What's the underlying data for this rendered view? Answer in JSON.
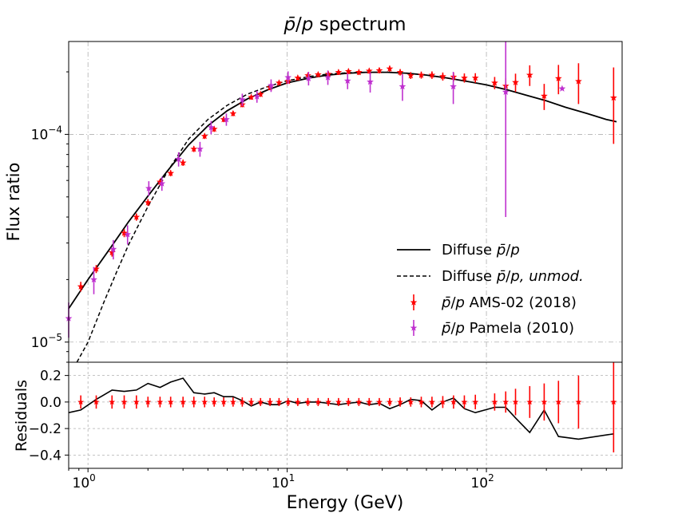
{
  "chart_data": [
    {
      "type": "scatter",
      "title": "p̄/p spectrum",
      "xlabel": "",
      "ylabel": "Flux ratio",
      "x_scale": "log",
      "y_scale": "log",
      "xlim": [
        0.8,
        480
      ],
      "ylim": [
        8e-06,
        0.00028
      ],
      "x_tick_labels": [
        "10^0",
        "10^1",
        "10^2"
      ],
      "y_tick_labels": [
        "10^-5",
        "10^-4"
      ],
      "grid": true,
      "legend_position": "lower-right",
      "series": [
        {
          "name": "Diffuse p̄/p",
          "style": "solid-line",
          "color": "#000000",
          "x": [
            0.8,
            1.0,
            1.3,
            1.6,
            2.0,
            2.5,
            3.2,
            4.0,
            5.0,
            6.3,
            8.0,
            10,
            13,
            16,
            20,
            25,
            32,
            40,
            50,
            63,
            80,
            100,
            130,
            160,
            200,
            250,
            320,
            400,
            450
          ],
          "y": [
            1.45e-05,
            2e-05,
            2.85e-05,
            3.8e-05,
            5.05e-05,
            6.65e-05,
            8.9e-05,
            0.00011,
            0.00013,
            0.000148,
            0.000164,
            0.000177,
            0.000187,
            0.000193,
            0.000197,
            0.000199,
            0.000199,
            0.000197,
            0.000193,
            0.000187,
            0.00018,
            0.000173,
            0.000163,
            0.000154,
            0.000145,
            0.000135,
            0.000126,
            0.000118,
            0.000115
          ]
        },
        {
          "name": "Diffuse p̄/p, unmod.",
          "style": "dashed-line",
          "color": "#000000",
          "x": [
            0.88,
            1.0,
            1.2,
            1.4,
            1.6,
            2.0,
            2.5,
            3.2,
            4.0,
            5.0,
            6.3,
            8.0,
            10,
            13,
            16,
            20,
            25,
            32
          ],
          "y": [
            7.5e-06,
            1e-05,
            1.55e-05,
            2.2e-05,
            2.95e-05,
            4.5e-05,
            6.6e-05,
            9.5e-05,
            0.000118,
            0.000138,
            0.000156,
            0.00017,
            0.000181,
            0.00019,
            0.000195,
            0.000198,
            0.000199,
            0.000199
          ]
        },
        {
          "name": "p̄/p AMS-02 (2018)",
          "style": "star-errorbar",
          "color": "#ff0000",
          "x": [
            0.92,
            1.1,
            1.32,
            1.52,
            1.75,
            2.0,
            2.3,
            2.6,
            3.0,
            3.4,
            3.85,
            4.3,
            4.8,
            5.35,
            5.95,
            6.6,
            7.35,
            8.2,
            9.1,
            10.1,
            11.3,
            12.7,
            14.3,
            16.1,
            18.1,
            20.3,
            22.9,
            25.8,
            29.0,
            32.7,
            36.9,
            41.7,
            47.1,
            53.3,
            60.4,
            68.4,
            77.5,
            88,
            110,
            125,
            140,
            165,
            195,
            230,
            290,
            435
          ],
          "y": [
            1.85e-05,
            2.25e-05,
            2.7e-05,
            3.35e-05,
            4e-05,
            4.7e-05,
            5.9e-05,
            6.5e-05,
            7.3e-05,
            8.5e-05,
            9.8e-05,
            0.000106,
            0.000118,
            0.000126,
            0.000139,
            0.000151,
            0.000156,
            0.000168,
            0.000177,
            0.00018,
            0.000187,
            0.000192,
            0.000194,
            0.000195,
            0.000199,
            0.000201,
            0.000199,
            0.000202,
            0.000203,
            0.000207,
            0.000199,
            0.000192,
            0.000193,
            0.000193,
            0.00019,
            0.000189,
            0.000187,
            0.000187,
            0.000177,
            0.000171,
            0.000178,
            0.000193,
            0.000153,
            0.000186,
            0.00018,
            0.00015
          ],
          "y_err": [
            1e-06,
            1e-06,
            1.2e-06,
            1.5e-06,
            1.6e-06,
            1.8e-06,
            2e-06,
            2.2e-06,
            2.5e-06,
            2.8e-06,
            3e-06,
            3.2e-06,
            3.5e-06,
            3.7e-06,
            4e-06,
            4.2e-06,
            4.5e-06,
            4.7e-06,
            5e-06,
            5e-06,
            5.2e-06,
            5.4e-06,
            5.5e-06,
            5.6e-06,
            5.8e-06,
            6e-06,
            6e-06,
            6.2e-06,
            6.5e-06,
            6.8e-06,
            7e-06,
            7.2e-06,
            7.5e-06,
            8e-06,
            8.5e-06,
            9e-06,
            9.5e-06,
            1e-05,
            1.2e-05,
            1.5e-05,
            1.8e-05,
            2.2e-05,
            2.2e-05,
            3e-05,
            4e-05,
            6e-05
          ]
        },
        {
          "name": "p̄/p Pamela (2010)",
          "style": "star-errorbar",
          "color": "#bf30cf",
          "x": [
            0.8,
            1.07,
            1.34,
            1.58,
            2.02,
            2.35,
            2.85,
            3.65,
            4.15,
            4.95,
            5.95,
            7.05,
            8.3,
            10.1,
            12.8,
            16.0,
            20.1,
            26.1,
            37.9,
            68.2,
            125,
            240
          ],
          "y": [
            1.3e-05,
            2e-05,
            2.8e-05,
            3.3e-05,
            5.5e-05,
            5.8e-05,
            7.6e-05,
            8.5e-05,
            0.000108,
            0.000118,
            0.000147,
            0.000152,
            0.000172,
            0.000188,
            0.000186,
            0.000188,
            0.000181,
            0.000179,
            0.00017,
            0.00017,
            0.00016,
            0.000166
          ],
          "y_err": [
            2.5e-06,
            3e-06,
            3e-06,
            3.5e-06,
            4.5e-06,
            4.5e-06,
            6e-06,
            7e-06,
            8e-06,
            8e-06,
            1e-05,
            1e-05,
            1.2e-05,
            1.3e-05,
            1.4e-05,
            1.5e-05,
            1.6e-05,
            2e-05,
            2.5e-05,
            3e-05,
            0.00012,
            0
          ]
        }
      ]
    },
    {
      "type": "line",
      "title": "",
      "xlabel": "Energy (GeV)",
      "ylabel": "Residuals",
      "x_scale": "log",
      "xlim": [
        0.8,
        480
      ],
      "ylim": [
        -0.5,
        0.3
      ],
      "y_ticks": [
        0.2,
        0.0,
        -0.2,
        -0.4
      ],
      "y_tick_labels": [
        "0.2",
        "0.0",
        "−0.2",
        "−0.4"
      ],
      "x_tick_labels": [
        "10^0",
        "10^1",
        "10^2"
      ],
      "grid": true,
      "series": [
        {
          "name": "",
          "style": "solid-line",
          "color": "#000000",
          "x": [
            0.8,
            0.92,
            1.1,
            1.32,
            1.52,
            1.75,
            2.0,
            2.3,
            2.6,
            3.0,
            3.4,
            3.85,
            4.3,
            4.8,
            5.35,
            5.95,
            6.6,
            7.35,
            8.2,
            9.1,
            10.1,
            11.3,
            12.7,
            14.3,
            16.1,
            18.1,
            20.3,
            22.9,
            25.8,
            29.0,
            32.7,
            36.9,
            41.7,
            47.1,
            53.3,
            60.4,
            68.4,
            77.5,
            88,
            110,
            125,
            140,
            165,
            195,
            230,
            290,
            435
          ],
          "y": [
            -0.08,
            -0.06,
            0.02,
            0.09,
            0.08,
            0.09,
            0.14,
            0.11,
            0.15,
            0.18,
            0.07,
            0.06,
            0.07,
            0.04,
            0.04,
            0.01,
            -0.03,
            0.0,
            -0.02,
            -0.02,
            0.01,
            -0.01,
            0.0,
            0.0,
            -0.01,
            -0.02,
            -0.01,
            0.0,
            -0.02,
            -0.01,
            -0.05,
            -0.02,
            0.02,
            0.01,
            -0.06,
            0.0,
            0.03,
            -0.05,
            -0.08,
            -0.04,
            -0.04,
            -0.12,
            -0.23,
            -0.06,
            -0.26,
            -0.28,
            -0.24
          ]
        },
        {
          "name": "",
          "style": "star-errorbar",
          "color": "#ff0000",
          "x": [
            0.92,
            1.1,
            1.32,
            1.52,
            1.75,
            2.0,
            2.3,
            2.6,
            3.0,
            3.4,
            3.85,
            4.3,
            4.8,
            5.35,
            5.95,
            6.6,
            7.35,
            8.2,
            9.1,
            10.1,
            11.3,
            12.7,
            14.3,
            16.1,
            18.1,
            20.3,
            22.9,
            25.8,
            29.0,
            32.7,
            36.9,
            41.7,
            47.1,
            53.3,
            60.4,
            68.4,
            77.5,
            88,
            110,
            125,
            140,
            165,
            195,
            230,
            290,
            435
          ],
          "y": [
            0,
            0,
            0,
            0,
            0,
            0,
            0,
            0,
            0,
            0,
            0,
            0,
            0,
            0,
            0,
            0,
            0,
            0,
            0,
            0,
            0,
            0,
            0,
            0,
            0,
            0,
            0,
            0,
            0,
            0,
            0,
            0,
            0,
            0,
            0,
            0,
            0,
            0,
            0,
            0,
            0,
            0,
            0,
            0,
            0,
            0
          ],
          "y_err": [
            0.05,
            0.05,
            0.05,
            0.05,
            0.05,
            0.04,
            0.04,
            0.04,
            0.04,
            0.04,
            0.04,
            0.035,
            0.035,
            0.035,
            0.035,
            0.03,
            0.03,
            0.03,
            0.03,
            0.03,
            0.03,
            0.03,
            0.03,
            0.03,
            0.03,
            0.03,
            0.03,
            0.03,
            0.03,
            0.03,
            0.035,
            0.035,
            0.04,
            0.04,
            0.045,
            0.05,
            0.05,
            0.055,
            0.065,
            0.08,
            0.1,
            0.12,
            0.14,
            0.16,
            0.2,
            0.38
          ]
        }
      ]
    }
  ]
}
